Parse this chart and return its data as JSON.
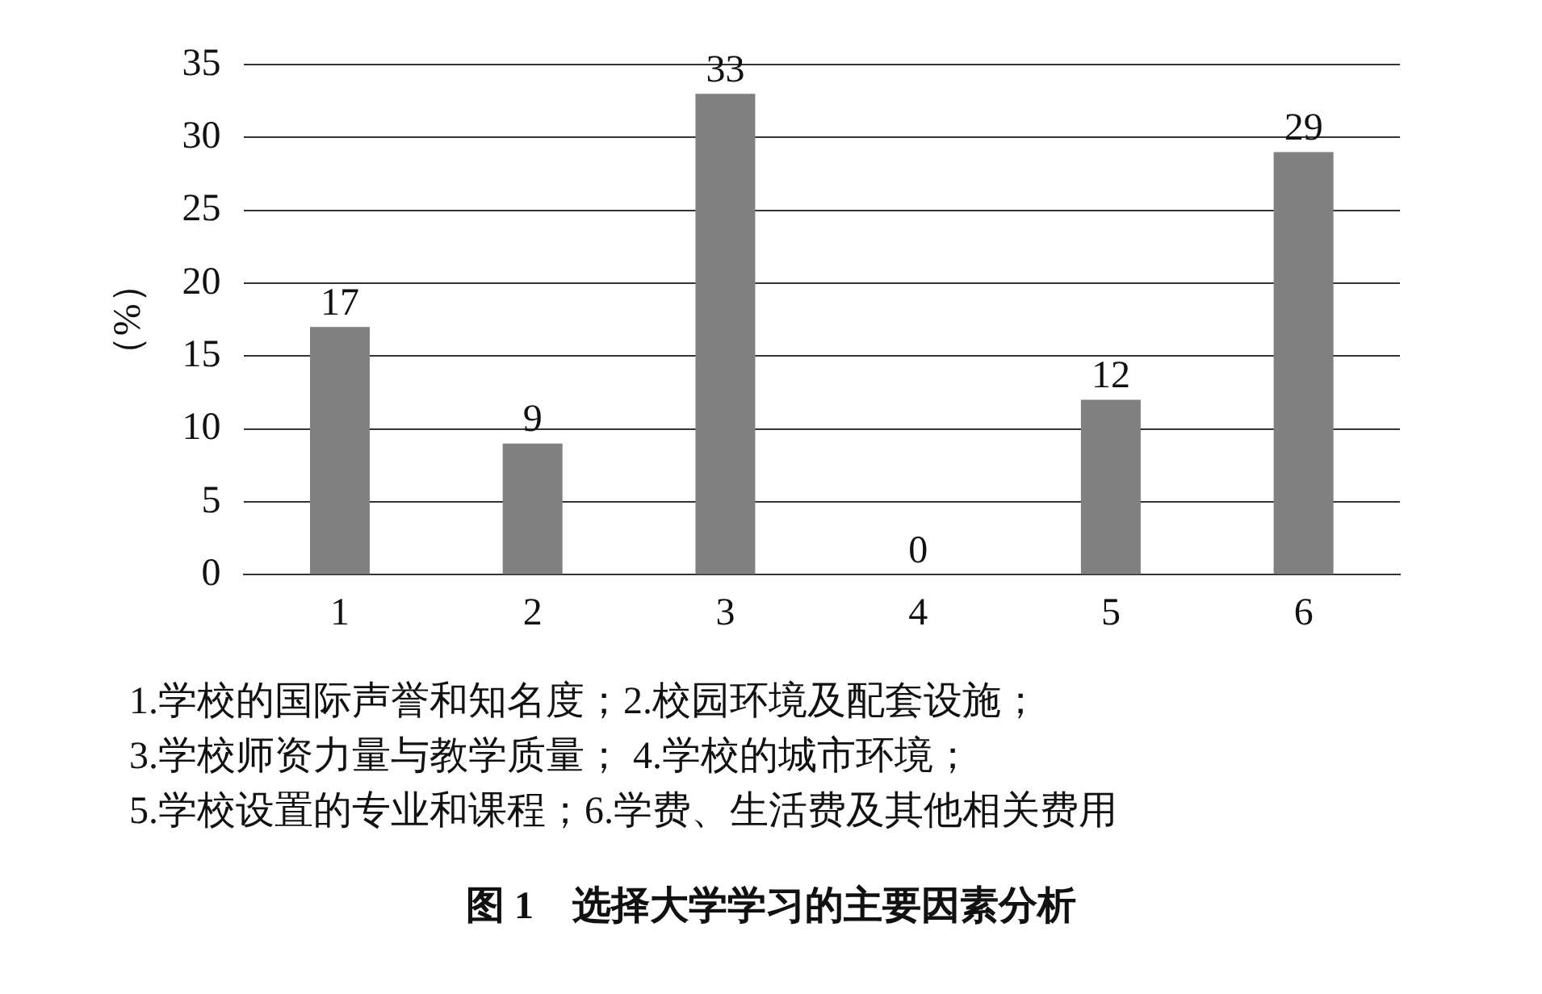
{
  "chart_data": {
    "type": "bar",
    "title": "图 1　选择大学学习的主要因素分析",
    "ylabel": "（%）",
    "categories": [
      "1",
      "2",
      "3",
      "4",
      "5",
      "6"
    ],
    "values": [
      17,
      9,
      33,
      0,
      12,
      29
    ],
    "color": "#808080",
    "ylim": [
      0,
      35
    ],
    "yticks": [
      0,
      5,
      10,
      15,
      20,
      25,
      30,
      35
    ],
    "grid": "y",
    "data_labels": true,
    "legend": false,
    "annotations": [
      "1.学校的国际声誉和知名度；2.校园环境及配套设施；",
      "3.学校师资力量与教学质量； 4.学校的城市环境；",
      "5.学校设置的专业和课程；6.学费、生活费及其他相关费用"
    ]
  }
}
